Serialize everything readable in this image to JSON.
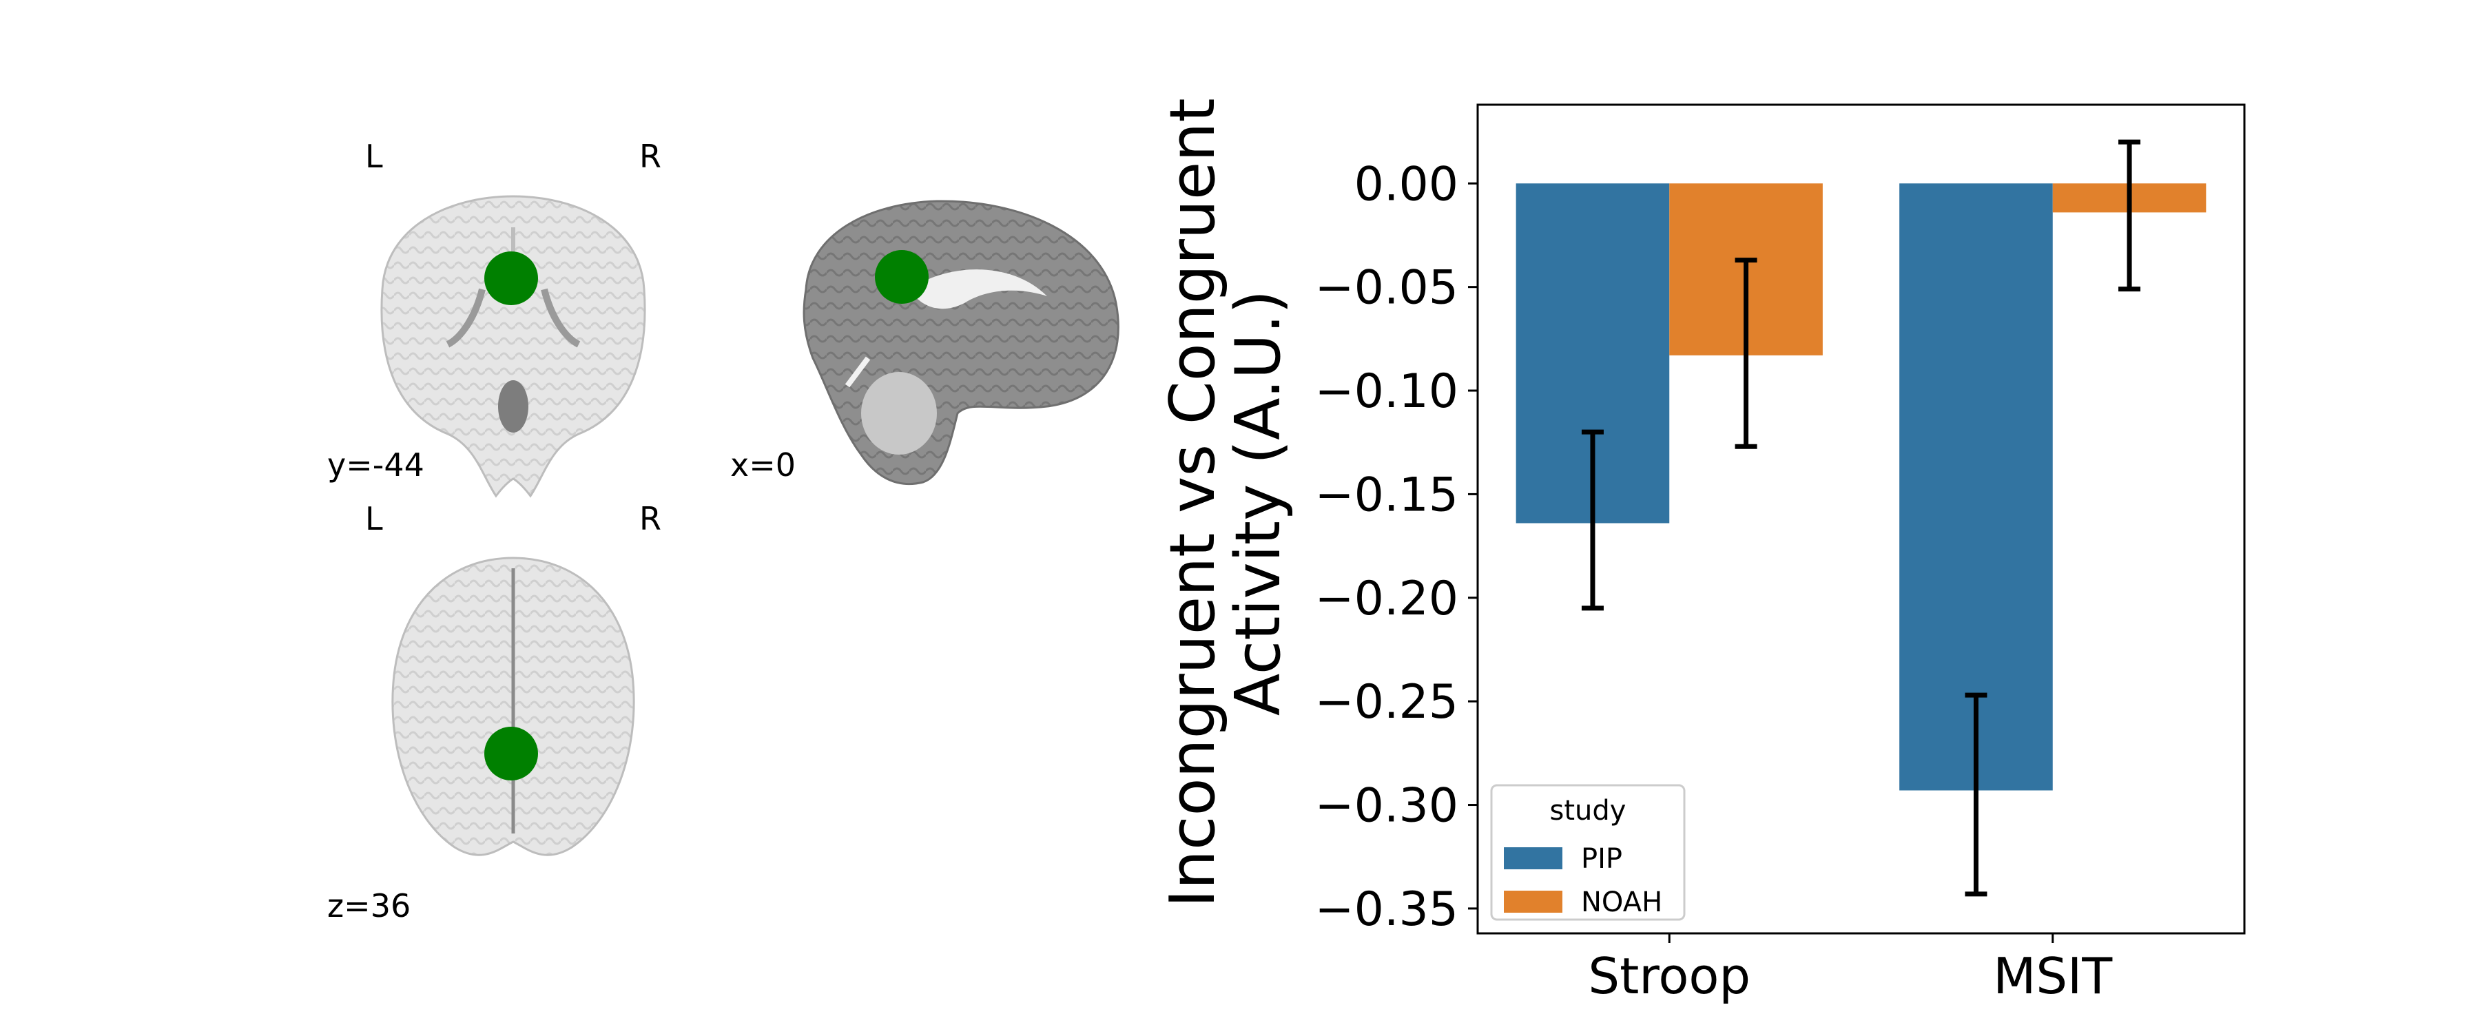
{
  "brain_panel": {
    "coronal": {
      "left_label": "L",
      "right_label": "R",
      "coord": "y=-44"
    },
    "sagittal": {
      "coord": "x=0"
    },
    "axial": {
      "left_label": "L",
      "right_label": "R",
      "coord": "z=36"
    },
    "roi_color": "#008000"
  },
  "chart_data": {
    "type": "bar",
    "categories": [
      "Stroop",
      "MSIT"
    ],
    "series": [
      {
        "name": "PIP",
        "color": "#3274a1",
        "values": [
          -0.164,
          -0.293
        ],
        "err_low": [
          -0.205,
          -0.343
        ],
        "err_high": [
          -0.12,
          -0.247
        ]
      },
      {
        "name": "NOAH",
        "color": "#e1812c",
        "values": [
          -0.083,
          -0.014
        ],
        "err_low": [
          -0.127,
          -0.051
        ],
        "err_high": [
          -0.037,
          0.02
        ]
      }
    ],
    "ylabel_line1": "Incongruent vs Congruent",
    "ylabel_line2": "Activity (A.U.)",
    "ylim": [
      -0.362,
      0.038
    ],
    "yticks": [
      0.0,
      -0.05,
      -0.1,
      -0.15,
      -0.2,
      -0.25,
      -0.3,
      -0.35
    ],
    "ytick_labels": [
      "0.00",
      "−0.05",
      "−0.10",
      "−0.15",
      "−0.20",
      "−0.25",
      "−0.30",
      "−0.35"
    ],
    "legend": {
      "title": "study",
      "placement": "lower-left"
    }
  }
}
